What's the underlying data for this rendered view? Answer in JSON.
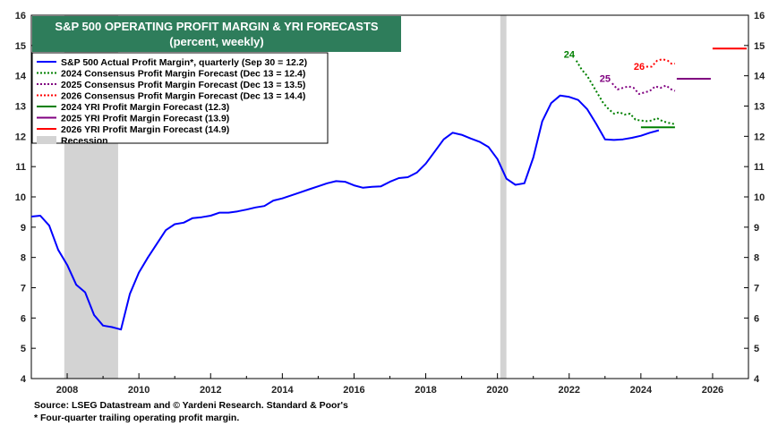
{
  "chart_data": {
    "type": "line",
    "title": "S&P 500 OPERATING PROFIT MARGIN & YRI FORECASTS",
    "subtitle": "(percent, weekly)",
    "ylim": [
      4,
      16
    ],
    "xlim": [
      2007.0,
      2027.0
    ],
    "y_ticks": [
      "4",
      "5",
      "6",
      "7",
      "8",
      "9",
      "10",
      "11",
      "12",
      "13",
      "14",
      "15",
      "16"
    ],
    "x_ticks": [
      "2008",
      "2010",
      "2012",
      "2014",
      "2016",
      "2018",
      "2020",
      "2022",
      "2024",
      "2026"
    ],
    "grid": false,
    "legend_position": "top-left",
    "colors": {
      "title_bg": "#2e7d5b",
      "actual": "#0000ff",
      "f2024": "#008000",
      "f2025": "#800080",
      "f2026": "#ff0000",
      "recession": "#d3d3d3"
    },
    "recessions": [
      [
        2007.92,
        2009.42
      ],
      [
        2020.08,
        2020.25
      ]
    ],
    "series": [
      {
        "name": "S&P 500 Actual Profit Margin*, quarterly (Sep 30 = 12.2)",
        "style": "solid",
        "color": "#0000ff",
        "x": [
          2007.0,
          2007.25,
          2007.5,
          2007.75,
          2008.0,
          2008.25,
          2008.5,
          2008.75,
          2009.0,
          2009.25,
          2009.5,
          2009.75,
          2010.0,
          2010.25,
          2010.5,
          2010.75,
          2011.0,
          2011.25,
          2011.5,
          2011.75,
          2012.0,
          2012.25,
          2012.5,
          2012.75,
          2013.0,
          2013.25,
          2013.5,
          2013.75,
          2014.0,
          2014.25,
          2014.5,
          2014.75,
          2015.0,
          2015.25,
          2015.5,
          2015.75,
          2016.0,
          2016.25,
          2016.5,
          2016.75,
          2017.0,
          2017.25,
          2017.5,
          2017.75,
          2018.0,
          2018.25,
          2018.5,
          2018.75,
          2019.0,
          2019.25,
          2019.5,
          2019.75,
          2020.0,
          2020.25,
          2020.5,
          2020.75,
          2021.0,
          2021.25,
          2021.5,
          2021.75,
          2022.0,
          2022.25,
          2022.5,
          2022.75,
          2023.0,
          2023.25,
          2023.5,
          2023.75,
          2024.0,
          2024.25,
          2024.5
        ],
        "y": [
          9.35,
          9.38,
          9.05,
          8.25,
          7.75,
          7.1,
          6.85,
          6.1,
          5.75,
          5.7,
          5.62,
          6.8,
          7.5,
          8.0,
          8.45,
          8.9,
          9.1,
          9.15,
          9.3,
          9.33,
          9.38,
          9.48,
          9.48,
          9.52,
          9.58,
          9.65,
          9.7,
          9.88,
          9.95,
          10.05,
          10.15,
          10.25,
          10.35,
          10.45,
          10.52,
          10.5,
          10.38,
          10.3,
          10.33,
          10.35,
          10.5,
          10.62,
          10.65,
          10.8,
          11.1,
          11.5,
          11.9,
          12.12,
          12.05,
          11.93,
          11.82,
          11.65,
          11.25,
          10.6,
          10.4,
          10.45,
          11.3,
          12.5,
          13.1,
          13.35,
          13.3,
          13.2,
          12.9,
          12.42,
          11.9,
          11.88,
          11.9,
          11.95,
          12.02,
          12.12,
          12.2
        ]
      },
      {
        "name": "2024 Consensus Profit Margin Forecast (Dec 13 = 12.4)",
        "style": "dotted",
        "color": "#008000",
        "x": [
          2022.2,
          2022.35,
          2022.5,
          2022.65,
          2022.8,
          2022.95,
          2023.1,
          2023.25,
          2023.4,
          2023.55,
          2023.7,
          2023.85,
          2024.0,
          2024.15,
          2024.3,
          2024.45,
          2024.6,
          2024.75,
          2024.95
        ],
        "y": [
          14.5,
          14.2,
          14.0,
          13.7,
          13.4,
          13.1,
          12.9,
          12.75,
          12.8,
          12.72,
          12.75,
          12.55,
          12.52,
          12.5,
          12.52,
          12.6,
          12.5,
          12.45,
          12.4
        ]
      },
      {
        "name": "2025 Consensus Profit Margin Forecast (Dec 13 = 13.5)",
        "style": "dotted",
        "color": "#800080",
        "x": [
          2023.2,
          2023.35,
          2023.5,
          2023.65,
          2023.8,
          2023.95,
          2024.1,
          2024.25,
          2024.4,
          2024.55,
          2024.7,
          2024.85,
          2024.95
        ],
        "y": [
          13.75,
          13.55,
          13.6,
          13.65,
          13.6,
          13.4,
          13.45,
          13.5,
          13.65,
          13.6,
          13.68,
          13.55,
          13.5
        ]
      },
      {
        "name": "2026 Consensus Profit Margin Forecast (Dec 13 = 14.4)",
        "style": "dotted",
        "color": "#ff0000",
        "x": [
          2024.15,
          2024.3,
          2024.45,
          2024.6,
          2024.75,
          2024.85,
          2024.95
        ],
        "y": [
          14.3,
          14.3,
          14.5,
          14.55,
          14.5,
          14.4,
          14.4
        ]
      },
      {
        "name": "2024 YRI Profit Margin Forecast (12.3)",
        "style": "solid",
        "color": "#008000",
        "x": [
          2024.0,
          2024.95
        ],
        "y": [
          12.3,
          12.3
        ]
      },
      {
        "name": "2025 YRI Profit Margin Forecast (13.9)",
        "style": "solid",
        "color": "#800080",
        "x": [
          2025.0,
          2025.95
        ],
        "y": [
          13.9,
          13.9
        ]
      },
      {
        "name": "2026 YRI Profit Margin Forecast (14.9)",
        "style": "solid",
        "color": "#ff0000",
        "x": [
          2026.0,
          2026.95
        ],
        "y": [
          14.9,
          14.9
        ]
      }
    ],
    "legend": [
      {
        "label": "S&P 500 Actual Profit Margin*, quarterly (Sep 30 = 12.2)",
        "style": "solid",
        "color": "#0000ff"
      },
      {
        "label": "2024 Consensus Profit Margin Forecast (Dec 13 = 12.4)",
        "style": "dotted",
        "color": "#008000"
      },
      {
        "label": "2025 Consensus Profit Margin Forecast (Dec 13 = 13.5)",
        "style": "dotted",
        "color": "#800080"
      },
      {
        "label": "2026 Consensus Profit Margin Forecast (Dec 13 = 14.4)",
        "style": "dotted",
        "color": "#ff0000"
      },
      {
        "label": "2024 YRI Profit Margin Forecast (12.3)",
        "style": "solid",
        "color": "#008000"
      },
      {
        "label": "2025 YRI Profit Margin Forecast (13.9)",
        "style": "solid",
        "color": "#800080"
      },
      {
        "label": "2026 YRI Profit Margin Forecast (14.9)",
        "style": "solid",
        "color": "#ff0000"
      },
      {
        "label": "Recession",
        "style": "box",
        "color": "#d3d3d3"
      }
    ],
    "annotations": [
      {
        "text": "24",
        "x": 2021.85,
        "y": 14.6,
        "color": "#008000"
      },
      {
        "text": "25",
        "x": 2022.85,
        "y": 13.8,
        "color": "#800080"
      },
      {
        "text": "26",
        "x": 2023.8,
        "y": 14.2,
        "color": "#ff0000"
      }
    ]
  },
  "footer": {
    "source": "Source: LSEG Datastream and © Yardeni Research. Standard & Poor's",
    "note": "* Four-quarter trailing operating profit margin."
  }
}
